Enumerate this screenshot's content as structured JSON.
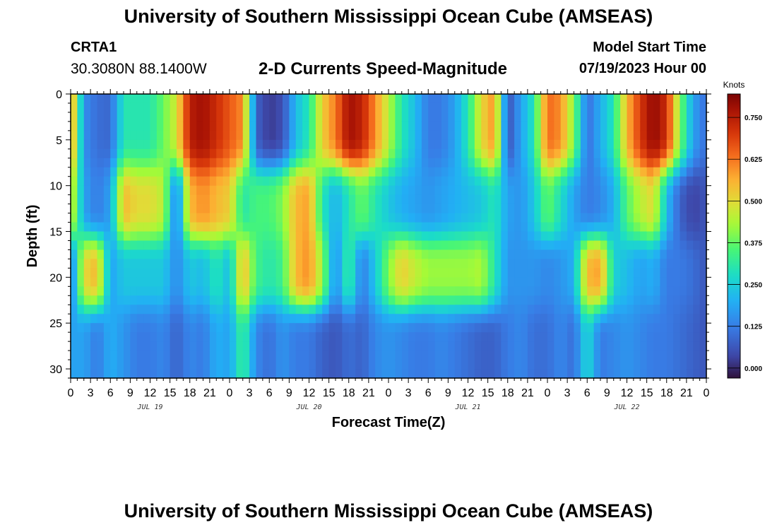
{
  "header": {
    "title": "University of Southern Mississippi Ocean Cube (AMSEAS)",
    "station": "CRTA1",
    "coords": "30.3080N  88.1400W",
    "subtitle": "2-D Currents Speed-Magnitude",
    "start_label": "Model Start Time",
    "start_value": "07/19/2023 Hour 00"
  },
  "footer": {
    "title": "University of Southern Mississippi Ocean Cube (AMSEAS)"
  },
  "chart_data": {
    "type": "heatmap",
    "title": "2-D Currents Speed-Magnitude",
    "xlabel": "Forecast Time(Z)",
    "ylabel": "Depth (ft)",
    "x_range_hours": [
      0,
      96
    ],
    "y_range_ft": [
      0,
      31
    ],
    "y_inverted": true,
    "x_tick_labels": [
      "0",
      "3",
      "6",
      "9",
      "12",
      "15",
      "18",
      "21",
      "0",
      "3",
      "6",
      "9",
      "12",
      "15",
      "18",
      "21",
      "0",
      "3",
      "6",
      "9",
      "12",
      "15",
      "18",
      "21",
      "0",
      "3",
      "6",
      "9",
      "12",
      "15",
      "18",
      "21",
      "0"
    ],
    "y_ticks": [
      0,
      5,
      10,
      15,
      20,
      25,
      30
    ],
    "date_labels": [
      {
        "text": "JUL 19",
        "hour": 12
      },
      {
        "text": "JUL 20",
        "hour": 36
      },
      {
        "text": "JUL 21",
        "hour": 60
      },
      {
        "text": "JUL 22",
        "hour": 84
      }
    ],
    "colorbar": {
      "unit": "Knots",
      "min": -0.03,
      "max": 0.82,
      "ticks": [
        0.0,
        0.125,
        0.25,
        0.375,
        0.5,
        0.625,
        0.75
      ],
      "tick_labels": [
        "0.000",
        "0.125",
        "0.250",
        "0.375",
        "0.500",
        "0.625",
        "0.750"
      ]
    },
    "grid": {
      "hours_step": 1,
      "depth_centers_ft": [
        0.5,
        1.5,
        2.5,
        3.5,
        4.5,
        5.5,
        6.5,
        7.5,
        8.5,
        9.5,
        10.5,
        11.5,
        12.5,
        13.5,
        14.5,
        15.5,
        16.5,
        17.5,
        18.5,
        19.5,
        20.5,
        21.5,
        22.5,
        23.5,
        24.5,
        25.5,
        26.5,
        27.5,
        28.5,
        29.5,
        30.5
      ],
      "layers": [
        {
          "name": "surface",
          "depth_ft": [
            0,
            8
          ],
          "hours": [
            0,
            2,
            4,
            6,
            8,
            10,
            12,
            14,
            16,
            18,
            20,
            22,
            24,
            26,
            28,
            30,
            32,
            34,
            36,
            38,
            40,
            42,
            44,
            46,
            48,
            50,
            52,
            54,
            56,
            58,
            60,
            62,
            64,
            66,
            68,
            70,
            72,
            74,
            76,
            78,
            80,
            82,
            84,
            86,
            88,
            90,
            92,
            94,
            96
          ],
          "speed_knots": [
            0.62,
            0.15,
            0.1,
            0.09,
            0.3,
            0.3,
            0.3,
            0.38,
            0.48,
            0.75,
            0.78,
            0.72,
            0.66,
            0.6,
            0.08,
            0.02,
            0.05,
            0.22,
            0.3,
            0.52,
            0.62,
            0.78,
            0.74,
            0.6,
            0.45,
            0.3,
            0.22,
            0.12,
            0.12,
            0.18,
            0.3,
            0.5,
            0.6,
            0.05,
            0.18,
            0.3,
            0.64,
            0.6,
            0.4,
            0.1,
            0.2,
            0.3,
            0.55,
            0.7,
            0.8,
            0.72,
            0.4,
            0.18,
            0.1
          ]
        },
        {
          "name": "mid",
          "depth_ft": [
            8,
            16
          ],
          "hours": [
            0,
            2,
            4,
            6,
            8,
            10,
            12,
            14,
            16,
            18,
            20,
            22,
            24,
            26,
            28,
            30,
            32,
            34,
            36,
            38,
            40,
            42,
            44,
            46,
            48,
            50,
            52,
            54,
            56,
            58,
            60,
            62,
            64,
            66,
            68,
            70,
            72,
            74,
            76,
            78,
            80,
            82,
            84,
            86,
            88,
            90,
            92,
            94,
            96
          ],
          "speed_knots": [
            0.5,
            0.18,
            0.12,
            0.18,
            0.55,
            0.5,
            0.5,
            0.45,
            0.1,
            0.55,
            0.6,
            0.55,
            0.52,
            0.3,
            0.35,
            0.35,
            0.4,
            0.55,
            0.58,
            0.3,
            0.2,
            0.3,
            0.38,
            0.3,
            0.24,
            0.2,
            0.18,
            0.16,
            0.18,
            0.2,
            0.22,
            0.24,
            0.3,
            0.18,
            0.16,
            0.24,
            0.38,
            0.28,
            0.18,
            0.12,
            0.14,
            0.2,
            0.36,
            0.45,
            0.5,
            0.22,
            0.08,
            0.03,
            0.06
          ]
        },
        {
          "name": "deep-mid",
          "depth_ft": [
            16,
            23
          ],
          "hours": [
            0,
            2,
            4,
            6,
            8,
            10,
            12,
            14,
            16,
            18,
            20,
            22,
            24,
            26,
            28,
            30,
            32,
            34,
            36,
            38,
            40,
            42,
            44,
            46,
            48,
            50,
            52,
            54,
            56,
            58,
            60,
            62,
            64,
            66,
            68,
            70,
            72,
            74,
            76,
            78,
            80,
            82,
            84,
            86,
            88,
            90,
            92,
            94,
            96
          ],
          "speed_knots": [
            0.1,
            0.5,
            0.55,
            0.18,
            0.24,
            0.24,
            0.24,
            0.24,
            0.14,
            0.24,
            0.22,
            0.3,
            0.22,
            0.56,
            0.34,
            0.3,
            0.34,
            0.55,
            0.6,
            0.42,
            0.14,
            0.34,
            0.12,
            0.24,
            0.4,
            0.52,
            0.46,
            0.42,
            0.42,
            0.42,
            0.42,
            0.44,
            0.3,
            0.16,
            0.16,
            0.16,
            0.14,
            0.16,
            0.2,
            0.55,
            0.58,
            0.26,
            0.22,
            0.18,
            0.2,
            0.12,
            0.12,
            0.1,
            0.06
          ]
        },
        {
          "name": "bottom",
          "depth_ft": [
            23,
            31
          ],
          "hours": [
            0,
            2,
            4,
            6,
            8,
            10,
            12,
            14,
            16,
            18,
            20,
            22,
            24,
            26,
            28,
            30,
            32,
            34,
            36,
            38,
            40,
            42,
            44,
            46,
            48,
            50,
            52,
            54,
            56,
            58,
            60,
            62,
            64,
            66,
            68,
            70,
            72,
            74,
            76,
            78,
            80,
            82,
            84,
            86,
            88,
            90,
            92,
            94,
            96
          ],
          "speed_knots": [
            0.18,
            0.18,
            0.12,
            0.2,
            0.16,
            0.12,
            0.12,
            0.14,
            0.08,
            0.14,
            0.12,
            0.2,
            0.18,
            0.34,
            0.14,
            0.1,
            0.16,
            0.12,
            0.12,
            0.08,
            0.06,
            0.1,
            0.08,
            0.14,
            0.16,
            0.14,
            0.12,
            0.12,
            0.14,
            0.12,
            0.1,
            0.08,
            0.08,
            0.12,
            0.14,
            0.1,
            0.1,
            0.14,
            0.1,
            0.28,
            0.12,
            0.14,
            0.16,
            0.14,
            0.12,
            0.12,
            0.1,
            0.08,
            0.06
          ]
        }
      ]
    }
  }
}
